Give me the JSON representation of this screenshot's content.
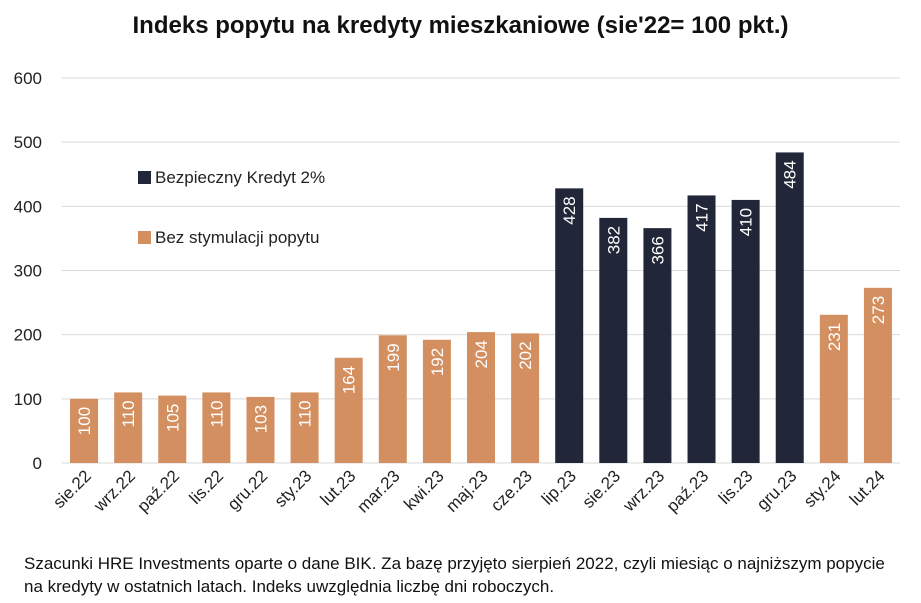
{
  "chart_data": {
    "type": "bar",
    "title": "Indeks popytu na kredyty mieszkaniowe (sie'22= 100 pkt.)",
    "categories": [
      "sie.22",
      "wrz.22",
      "paź.22",
      "lis.22",
      "gru.22",
      "sty.23",
      "lut.23",
      "mar.23",
      "kwi.23",
      "maj.23",
      "cze.23",
      "lip.23",
      "sie.23",
      "wrz.23",
      "paź.23",
      "lis.23",
      "gru.23",
      "sty.24",
      "lut.24"
    ],
    "values": [
      100,
      110,
      105,
      110,
      103,
      110,
      164,
      199,
      192,
      204,
      202,
      428,
      382,
      366,
      417,
      410,
      484,
      231,
      273
    ],
    "value_labels": [
      "100",
      "110",
      "105",
      "110",
      "103",
      "110",
      "164",
      "199",
      "192",
      "204",
      "202",
      "428",
      "382",
      "366",
      "417",
      "410",
      "484",
      "231",
      "273"
    ],
    "series_index": [
      1,
      1,
      1,
      1,
      1,
      1,
      1,
      1,
      1,
      1,
      1,
      0,
      0,
      0,
      0,
      0,
      0,
      1,
      1
    ],
    "series": [
      {
        "name": "Bezpieczny Kredyt 2%",
        "color": "#212738"
      },
      {
        "name": "Bez stymulacji popytu",
        "color": "#D38F5F"
      }
    ],
    "ylim": [
      0,
      600
    ],
    "yticks": [
      "0",
      "100",
      "200",
      "300",
      "400",
      "500",
      "600"
    ],
    "grid": true,
    "legend_position": "top-left"
  },
  "footnote": "Szacunki HRE Investments oparte o dane BIK. Za bazę przyjęto sierpień 2022, czyli miesiąc o najniższym popycie na kredyty w ostatnich latach. Indeks uwzględnia liczbę dni roboczych."
}
